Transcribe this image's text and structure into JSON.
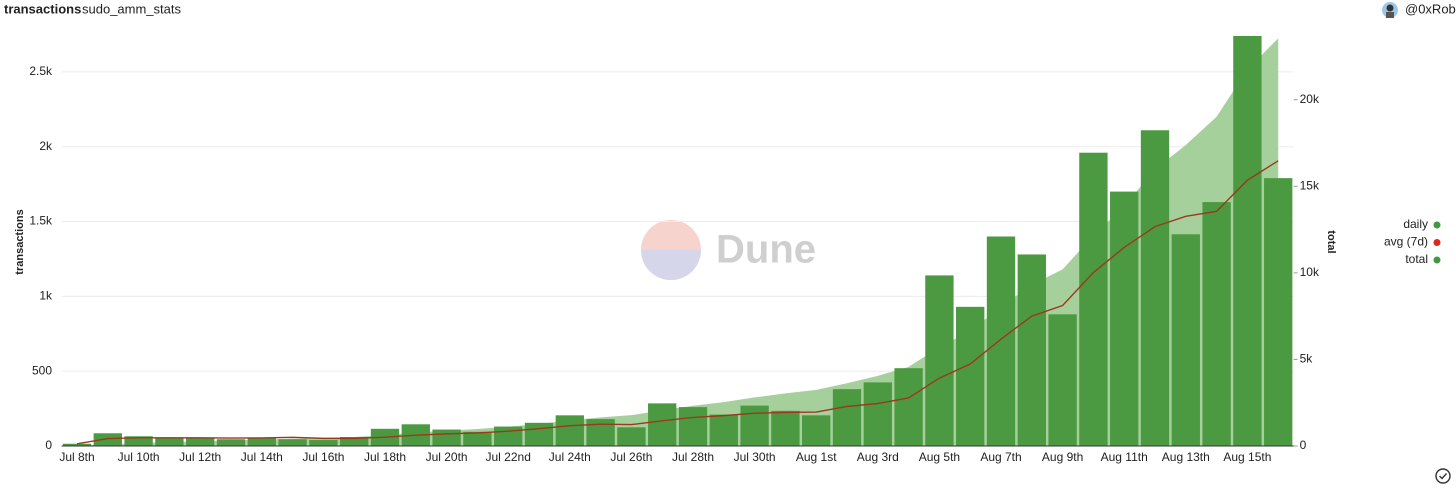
{
  "chart_data": {
    "type": "bar",
    "title": "transactions",
    "subtitle": "sudo_amm_stats",
    "author": "@0xRob",
    "watermark": "Dune",
    "ylabel": "transactions",
    "y2label": "total",
    "categories": [
      "Jul 8th",
      null,
      "Jul 10th",
      null,
      "Jul 12th",
      null,
      "Jul 14th",
      null,
      "Jul 16th",
      null,
      "Jul 18th",
      null,
      "Jul 20th",
      null,
      "Jul 22nd",
      null,
      "Jul 24th",
      null,
      "Jul 26th",
      null,
      "Jul 28th",
      null,
      "Jul 30th",
      null,
      "Aug 1st",
      null,
      "Aug 3rd",
      null,
      "Aug 5th",
      null,
      "Aug 7th",
      null,
      "Aug 9th",
      null,
      "Aug 11th",
      null,
      "Aug 13th",
      null,
      "Aug 15th",
      null
    ],
    "series": [
      {
        "name": "daily",
        "type": "bar",
        "color": "#4b9a41",
        "legend_color": "#3f9a3f",
        "values": [
          15,
          85,
          65,
          55,
          55,
          45,
          55,
          45,
          40,
          60,
          115,
          145,
          110,
          95,
          130,
          155,
          205,
          180,
          125,
          285,
          260,
          210,
          270,
          235,
          205,
          380,
          425,
          520,
          1140,
          930,
          1400,
          1280,
          880,
          1960,
          1700,
          2110,
          1415,
          1630,
          2740,
          1790
        ]
      },
      {
        "name": "avg (7d)",
        "type": "line",
        "color": "#9a3a1c",
        "legend_color": "#e0261c",
        "values": [
          15,
          50,
          55,
          55,
          55,
          53,
          54,
          58,
          51,
          51,
          59,
          72,
          81,
          87,
          99,
          116,
          136,
          146,
          143,
          168,
          191,
          203,
          219,
          224,
          227,
          264,
          284,
          321,
          454,
          548,
          714,
          868,
          939,
          1159,
          1327,
          1466,
          1535,
          1568,
          1776,
          1906
        ]
      },
      {
        "name": "total",
        "type": "area",
        "axis": "y2",
        "color": "#a6d09b",
        "legend_color": "#3f9a3f",
        "values": [
          15,
          100,
          165,
          220,
          275,
          320,
          375,
          420,
          460,
          520,
          635,
          780,
          890,
          985,
          1115,
          1270,
          1475,
          1655,
          1780,
          2065,
          2325,
          2535,
          2805,
          3040,
          3245,
          3625,
          4050,
          4570,
          5710,
          6640,
          8040,
          9320,
          10200,
          12160,
          13860,
          15970,
          17385,
          19015,
          21755,
          23545
        ]
      }
    ],
    "ylim": [
      0,
      2800
    ],
    "yticks": [
      0,
      500,
      {
        "value": 1000,
        "label": "1k"
      },
      {
        "value": 1500,
        "label": "1.5k"
      },
      {
        "value": 2000,
        "label": "2k"
      },
      {
        "value": 2500,
        "label": "2.5k"
      }
    ],
    "y2lim": [
      0,
      24200
    ],
    "y2ticks": [
      0,
      {
        "value": 5000,
        "label": "5k"
      },
      {
        "value": 10000,
        "label": "10k"
      },
      {
        "value": 15000,
        "label": "15k"
      },
      {
        "value": 20000,
        "label": "20k"
      }
    ],
    "grid": true,
    "legend": "right"
  }
}
